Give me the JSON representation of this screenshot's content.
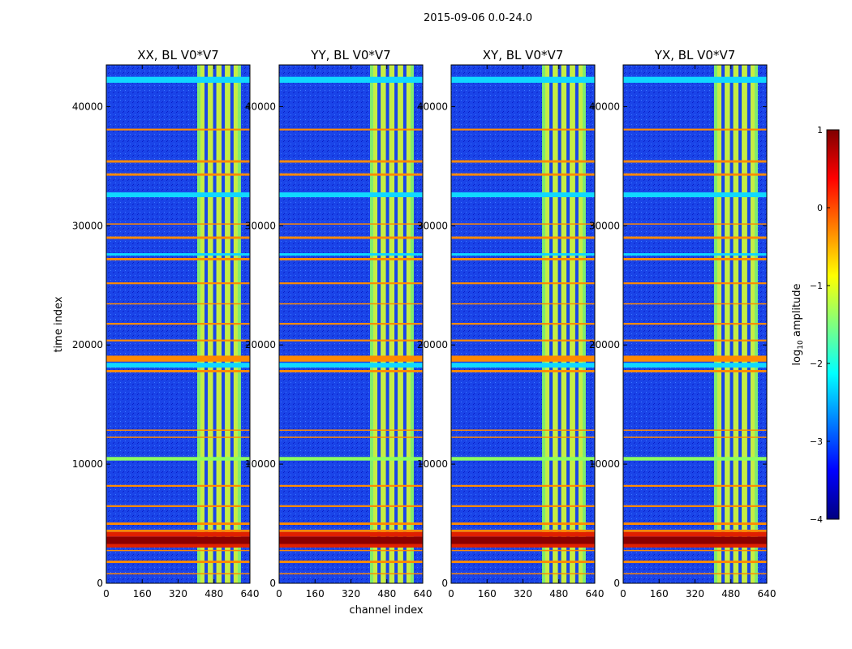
{
  "figure_title": "2015-09-06 0.0-24.0",
  "colormap": {
    "stops": [
      "#00007f",
      "#0000ff",
      "#007fff",
      "#00ffff",
      "#7fff7f",
      "#ffff00",
      "#ff7f00",
      "#ff0000",
      "#7f0000"
    ],
    "band_colors": {
      "background": "#1a44e8",
      "orange": "#ff8a00",
      "cyan": "#10d8ff",
      "green": "#8cff60",
      "dark_red": "#8a0000",
      "red": "#e02000",
      "yellow": "#ffee20",
      "white": "#eef6ff"
    }
  },
  "chart_data": {
    "type": "heatmap",
    "xlabel": "channel index",
    "ylabel": "time index",
    "xlim": [
      0,
      640
    ],
    "ylim": [
      0,
      43500
    ],
    "xticks": [
      0,
      160,
      320,
      480,
      640
    ],
    "yticks": [
      0,
      10000,
      20000,
      30000,
      40000
    ],
    "panels": [
      {
        "title": "XX, BL V0*V7",
        "xpol": "XX"
      },
      {
        "title": "YY, BL V0*V7",
        "xpol": "YY"
      },
      {
        "title": "XY, BL V0*V7",
        "xpol": "XY"
      },
      {
        "title": "YX, BL V0*V7",
        "xpol": "YX"
      }
    ],
    "rfi_channel_range": [
      405,
      600
    ],
    "rfi_channel_gaps": [
      445,
      483,
      521,
      560
    ],
    "time_bands": [
      {
        "start": 42000,
        "end": 42500,
        "value": "cyan"
      },
      {
        "start": 38000,
        "end": 38150,
        "value": "orange"
      },
      {
        "start": 35300,
        "end": 35500,
        "value": "orange"
      },
      {
        "start": 34200,
        "end": 34400,
        "value": "orange"
      },
      {
        "start": 32400,
        "end": 32800,
        "value": "cyan"
      },
      {
        "start": 30100,
        "end": 30200,
        "value": "orange"
      },
      {
        "start": 28900,
        "end": 29100,
        "value": "orange"
      },
      {
        "start": 27500,
        "end": 27700,
        "value": "cyan"
      },
      {
        "start": 27100,
        "end": 27300,
        "value": "orange"
      },
      {
        "start": 25100,
        "end": 25250,
        "value": "orange"
      },
      {
        "start": 23400,
        "end": 23500,
        "value": "orange"
      },
      {
        "start": 21700,
        "end": 21850,
        "value": "orange"
      },
      {
        "start": 20300,
        "end": 20450,
        "value": "orange"
      },
      {
        "start": 18600,
        "end": 19100,
        "value": "orange"
      },
      {
        "start": 18100,
        "end": 18500,
        "value": "cyan"
      },
      {
        "start": 17700,
        "end": 17900,
        "value": "orange"
      },
      {
        "start": 12800,
        "end": 12900,
        "value": "orange"
      },
      {
        "start": 12200,
        "end": 12300,
        "value": "orange"
      },
      {
        "start": 10300,
        "end": 10600,
        "value": "green"
      },
      {
        "start": 8100,
        "end": 8250,
        "value": "orange"
      },
      {
        "start": 6400,
        "end": 6550,
        "value": "orange"
      },
      {
        "start": 4900,
        "end": 5100,
        "value": "orange"
      },
      {
        "start": 4300,
        "end": 4500,
        "value": "orange"
      },
      {
        "start": 3900,
        "end": 4300,
        "value": "red"
      },
      {
        "start": 3300,
        "end": 3900,
        "value": "dark_red"
      },
      {
        "start": 3000,
        "end": 3300,
        "value": "red"
      },
      {
        "start": 2700,
        "end": 2800,
        "value": "orange"
      },
      {
        "start": 1700,
        "end": 1900,
        "value": "orange"
      },
      {
        "start": 750,
        "end": 850,
        "value": "orange"
      }
    ],
    "colorbar": {
      "label_prefix": "log",
      "label_sub": "10",
      "label_suffix": " amplitude",
      "range": [
        -4,
        1
      ],
      "ticks": [
        1,
        0,
        -1,
        -2,
        -3,
        -4
      ],
      "tick_labels": [
        "1",
        "0",
        "−1",
        "−2",
        "−3",
        "−4"
      ]
    }
  }
}
